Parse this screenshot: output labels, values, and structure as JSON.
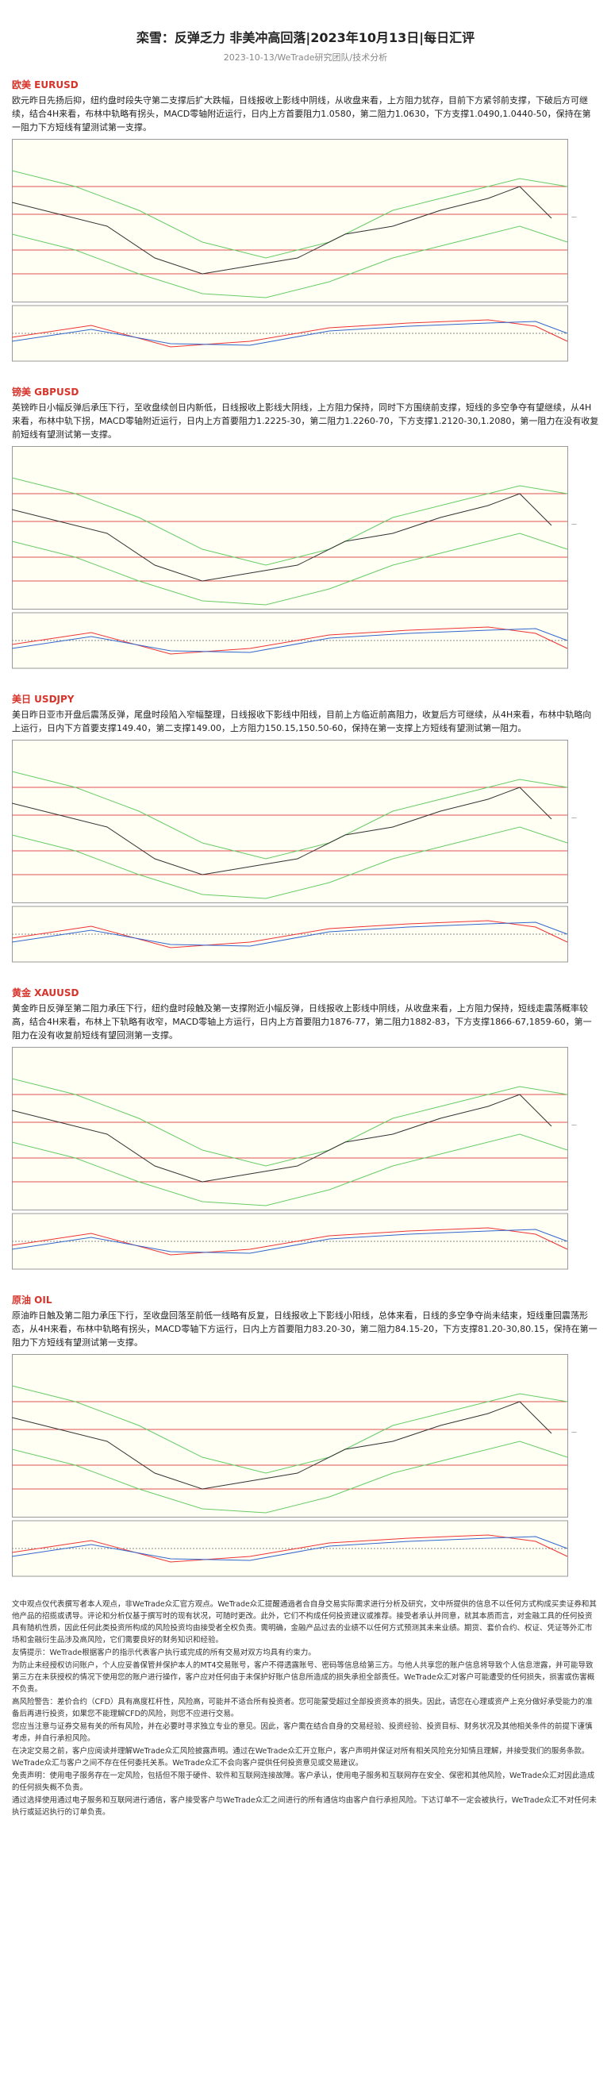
{
  "header": {
    "title": "栾雪：反弹乏力 非美冲高回落|2023年10月13日|每日汇评",
    "subtitle": "2023-10-13/WeTrade研究团队/技术分析"
  },
  "sections": [
    {
      "heading": "欧美 EURUSD",
      "text": "欧元昨日先扬后抑，纽约盘时段失守第二支撑后扩大跌幅，日线报收上影线中阴线，从收盘来看，上方阻力犹存，目前下方紧邻前支撑，下破后方可继续，结合4H来看，布林中轨略有拐头，MACD零轴附近运行，日内上方首要阻力1.0580，第二阻力1.0630，下方支撑1.0490,1.0440-50，保持在第一阻力下方短线有望测试第一支撑。"
    },
    {
      "heading": "镑美 GBPUSD",
      "text": "英镑昨日小幅反弹后承压下行，至收盘续创日内新低，日线报收上影线大阴线，上方阻力保持，同时下方围绕前支撑，短线的多空争夺有望继续，从4H来看，布林中轨下拐，MACD零轴附近运行，日内上方首要阻力1.2225-30，第二阻力1.2260-70，下方支撑1.2120-30,1.2080，第一阻力在没有收复前短线有望测试第一支撑。"
    },
    {
      "heading": "美日 USDJPY",
      "text": "美日昨日亚市开盘后震荡反弹，尾盘时段陷入窄幅整理，日线报收下影线中阳线，目前上方临近前高阻力，收复后方可继续，从4H来看，布林中轨略向上运行，日内下方首要支撑149.40，第二支撑149.00，上方阻力150.15,150.50-60，保持在第一支撑上方短线有望测试第一阻力。"
    },
    {
      "heading": "黄金 XAUUSD",
      "text": "黄金昨日反弹至第二阻力承压下行，纽约盘时段触及第一支撑附近小幅反弹，日线报收上影线中阴线，从收盘来看，上方阻力保持，短线走震荡概率较高，结合4H来看，布林上下轨略有收窄，MACD零轴上方运行，日内上方首要阻力1876-77，第二阻力1882-83，下方支撑1866-67,1859-60，第一阻力在没有收复前短线有望回测第一支撑。"
    },
    {
      "heading": "原油 OIL",
      "text": "原油昨日触及第二阻力承压下行，至收盘回落至前低一线略有反复，日线报收上下影线小阳线，总体来看，日线的多空争夺尚未结束，短线重回震荡形态，从4H来看，布林中轨略有拐头，MACD零轴下方运行，日内上方首要阻力83.20-30，第二阻力84.15-20，下方支撑81.20-30,80.15，保持在第一阻力下方短线有望测试第一支撑。"
    }
  ],
  "disclaimer": [
    "文中观点仅代表撰写者本人观点，非WeTrade众汇官方观点。WeTrade众汇提醒通過者合自身交易实际需求进行分析及研究，文中所提供的信息不以任何方式构成买卖证券和其他产品的招揽或诱导。评论和分析仅基于撰写时的现有状况，可随时更改。此外，它们不构成任何投资建议或推荐。接受者承认并同意，就其本质而言，对金融工具的任何投资具有随机性质，因此任何此类投资所构成的风险投资均由接受者全权负责。需明确，金融产品过去的业绩不以任何方式预测其未来业绩。期货、套价合约、权证、凭证等外汇市场和金融衍生品涉及高风险，它们需要良好的财务知识和经验。",
    "友情提示：WeTrade根据客户的指示代表客户执行或完成的所有交易对双方均具有约束力。",
    "为防止未经授权访问账户，个人应妥善保管并保护本人的MT4交易账号，客户不得透露账号、密码等信息给第三方。与他人共享您的账户信息将导致个人信息泄露，并可能导致第三方在未获授权的情况下使用您的账户进行操作，客户应对任何由于未保护好账户信息所造成的损失承担全部责任。WeTrade众汇对客户可能遭受的任何损失，损害或伤害概不负责。",
    "高风险警告：差价合约（CFD）具有高度杠杆性，风险高，可能并不适合所有投资者。您可能蒙受超过全部投资资本的损失。因此，请您在心理或资产上充分做好承受能力的准备后再进行投资，如果您不能理解CFD的风险，则您不应进行交易。",
    "您应当注意与证券交易有关的所有风险，并在必要时寻求独立专业的意见。因此，客户需在结合自身的交易经验、投资经验、投资目标、财务状况及其他相关条件的前提下谨慎考虑，并自行承担风险。",
    "在决定交易之前，客户应阅读并理解WeTrade众汇风险披露声明。通过在WeTrade众汇开立账户，客户声明并保证对所有相关风险充分知情且理解，并接受我们的服务条款。WeTrade众汇与客户之间不存在任何委托关系。WeTrade众汇不会向客户提供任何投资意见或交易建议。",
    "免责声明：使用电子服务存在一定风险，包括但不限于硬件、软件和互联网连接故障。客户承认，使用电子服务和互联网存在安全、保密和其他风险，WeTrade众汇对因此造成的任何损失概不负责。",
    "通过选择使用通过电子服务和互联网进行通信，客户接受客户与WeTrade众汇之间进行的所有通信均由客户自行承担风险。下达订单不一定会被执行，WeTrade众汇不对任何未执行或延迟执行的订单负责。"
  ]
}
